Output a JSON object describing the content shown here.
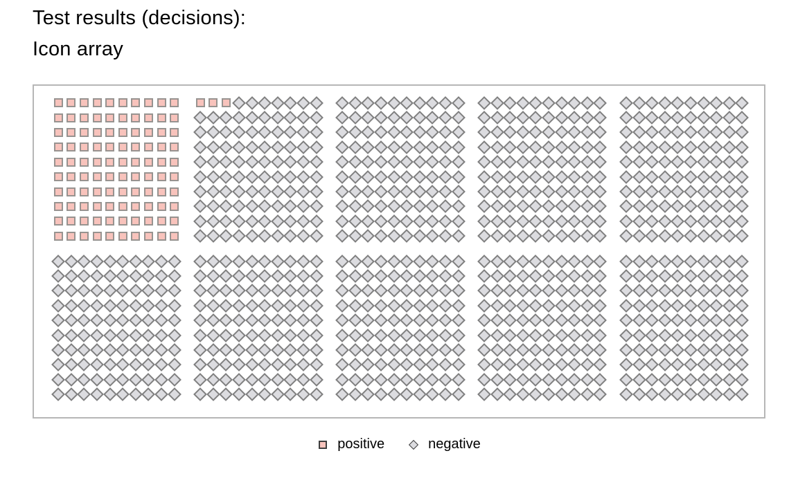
{
  "chart_data": {
    "type": "icon_array",
    "title_line1": "Test results (decisions):",
    "title_line2": "Icon array",
    "total_icons": 1000,
    "counts": {
      "positive": 103,
      "negative": 897
    },
    "layout": {
      "block_grid": {
        "columns": 5,
        "rows": 2
      },
      "icons_per_block": {
        "columns": 10,
        "rows": 10
      },
      "fill_order": "row-major within each block; blocks ordered left-to-right, top-to-bottom",
      "legend_position": "bottom-center",
      "panel_border": true,
      "grid": "off"
    },
    "legend": [
      {
        "label": "positive",
        "marker": "square",
        "fill": "#f8c3bc",
        "edge": "#979390"
      },
      {
        "label": "negative",
        "marker": "diamond",
        "fill": "#dcdce0",
        "edge": "#808080"
      }
    ],
    "colors": {
      "panel_border": "#b6b6b6",
      "legend_marker_edge": "#3e3e3e",
      "title_text": "#000000"
    }
  }
}
